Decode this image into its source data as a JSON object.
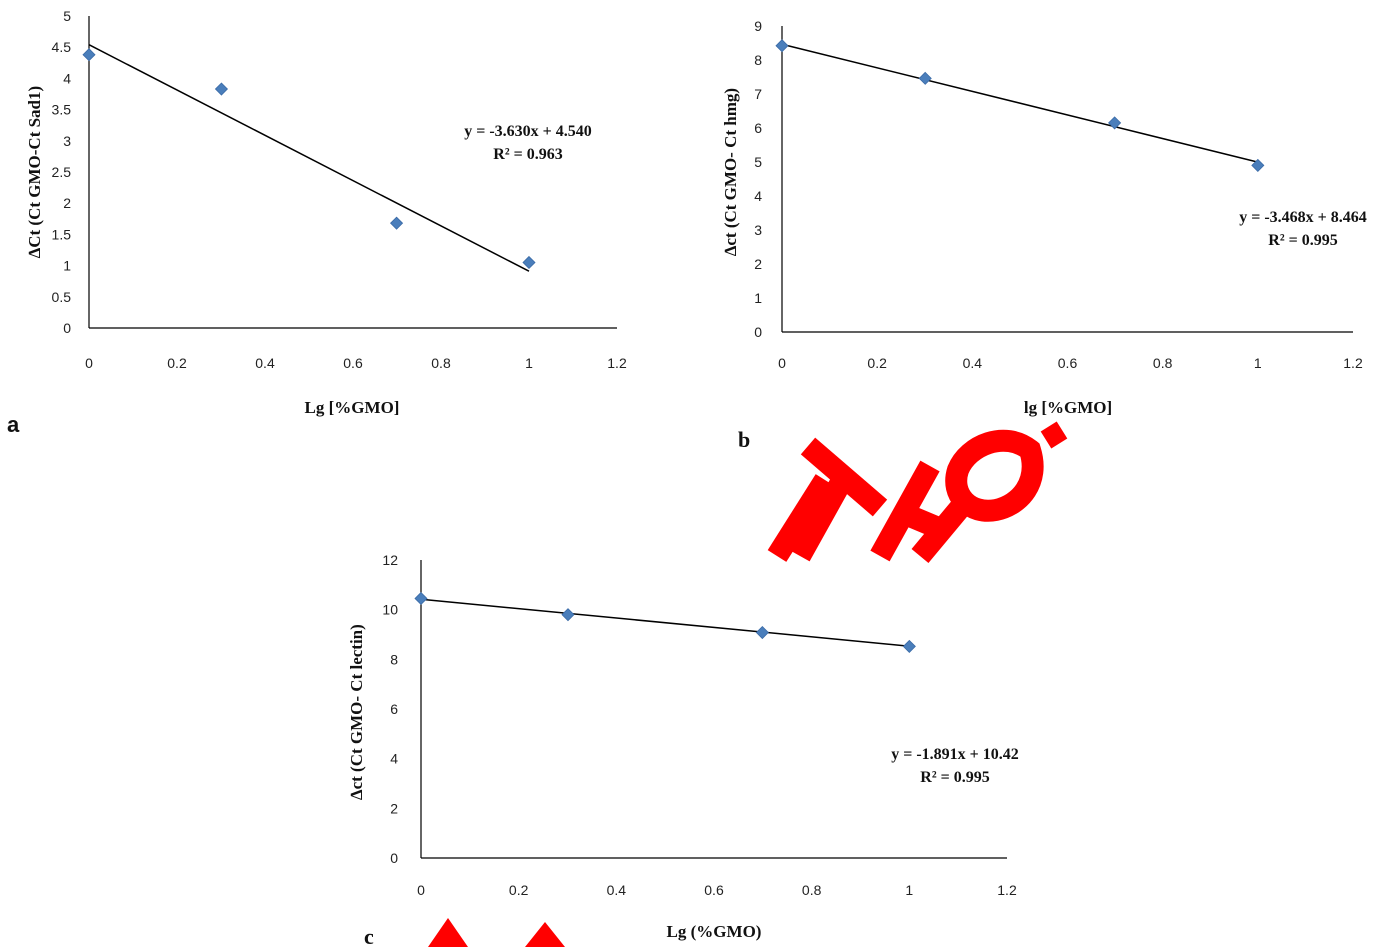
{
  "watermark_color": "#ff0000",
  "chart_data": [
    {
      "type": "scatter",
      "panel_label": "a",
      "xlabel": "Lg [%GMO]",
      "ylabel": "∆Ct (Ct GMO-Ct Sad1)",
      "xlim": [
        0,
        1.2
      ],
      "ylim": [
        0,
        5
      ],
      "x_ticks": [
        "0",
        "0.2",
        "0.4",
        "0.6",
        "0.8",
        "1",
        "1.2"
      ],
      "y_ticks": [
        "0",
        "0.5",
        "1",
        "1.5",
        "2",
        "2.5",
        "3",
        "3.5",
        "4",
        "4.5",
        "5"
      ],
      "x": [
        0,
        0.301,
        0.699,
        1
      ],
      "y": [
        4.38,
        3.83,
        1.68,
        1.05
      ],
      "trendline": {
        "slope": -3.63,
        "intercept": 4.54
      },
      "equation": "y = -3.630x + 4.540",
      "r2": "R² = 0.963",
      "marker_color": "#4a7ebb",
      "grid": false,
      "legend": "none"
    },
    {
      "type": "scatter",
      "panel_label": "b",
      "xlabel": "lg [%GMO]",
      "ylabel": "∆ct (Ct GMO- Ct hmg)",
      "xlim": [
        0,
        1.2
      ],
      "ylim": [
        0,
        9
      ],
      "x_ticks": [
        "0",
        "0.2",
        "0.4",
        "0.6",
        "0.8",
        "1",
        "1.2"
      ],
      "y_ticks": [
        "0",
        "1",
        "2",
        "3",
        "4",
        "5",
        "6",
        "7",
        "8",
        "9"
      ],
      "x": [
        0,
        0.301,
        0.699,
        1
      ],
      "y": [
        8.42,
        7.46,
        6.15,
        4.9
      ],
      "trendline": {
        "slope": -3.468,
        "intercept": 8.464
      },
      "equation": "y = -3.468x + 8.464",
      "r2": "R² = 0.995",
      "marker_color": "#4a7ebb",
      "grid": false,
      "legend": "none"
    },
    {
      "type": "scatter",
      "panel_label": "c",
      "xlabel": "Lg (%GMO)",
      "ylabel": "∆ct (Ct GMO- Ct lectin)",
      "xlim": [
        0,
        1.2
      ],
      "ylim": [
        0,
        12
      ],
      "x_ticks": [
        "0",
        "0.2",
        "0.4",
        "0.6",
        "0.8",
        "1",
        "1.2"
      ],
      "y_ticks": [
        "0",
        "2",
        "4",
        "6",
        "8",
        "10",
        "12"
      ],
      "x": [
        0,
        0.301,
        0.699,
        1
      ],
      "y": [
        10.45,
        9.8,
        9.08,
        8.52
      ],
      "trendline": {
        "slope": -1.891,
        "intercept": 10.42
      },
      "equation": "y = -1.891x + 10.42",
      "r2": "R² = 0.995",
      "marker_color": "#4a7ebb",
      "grid": false,
      "legend": "none"
    }
  ]
}
